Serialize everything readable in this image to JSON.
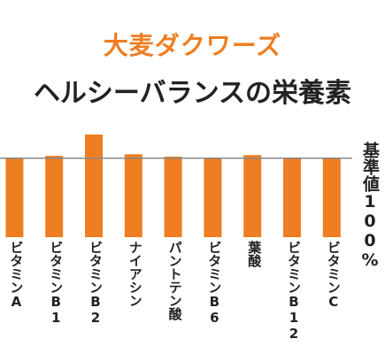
{
  "title": "大麦ダクワーズ",
  "subtitle": "ヘルシーバランスの栄養素",
  "colors": {
    "bar": "#ef7d22",
    "title_accent": "#ef7d22",
    "text": "#222222",
    "ref_line": "#888888"
  },
  "chart_data": {
    "type": "bar",
    "title": "大麦ダクワーズ",
    "subtitle": "ヘルシーバランスの栄養素",
    "categories": [
      "ビタミンA",
      "ビタミンB1",
      "ビタミンB2",
      "ナイアシン",
      "パントテン酸",
      "ビタミンB6",
      "葉酸",
      "ビタミンB12",
      "ビタミンC"
    ],
    "values": [
      100,
      103,
      130,
      105,
      102,
      100,
      104,
      100,
      100
    ],
    "ylim": [
      0,
      130
    ],
    "reference_line": {
      "value": 100,
      "label": "基準値100%"
    },
    "grid": false,
    "legend": "none"
  }
}
